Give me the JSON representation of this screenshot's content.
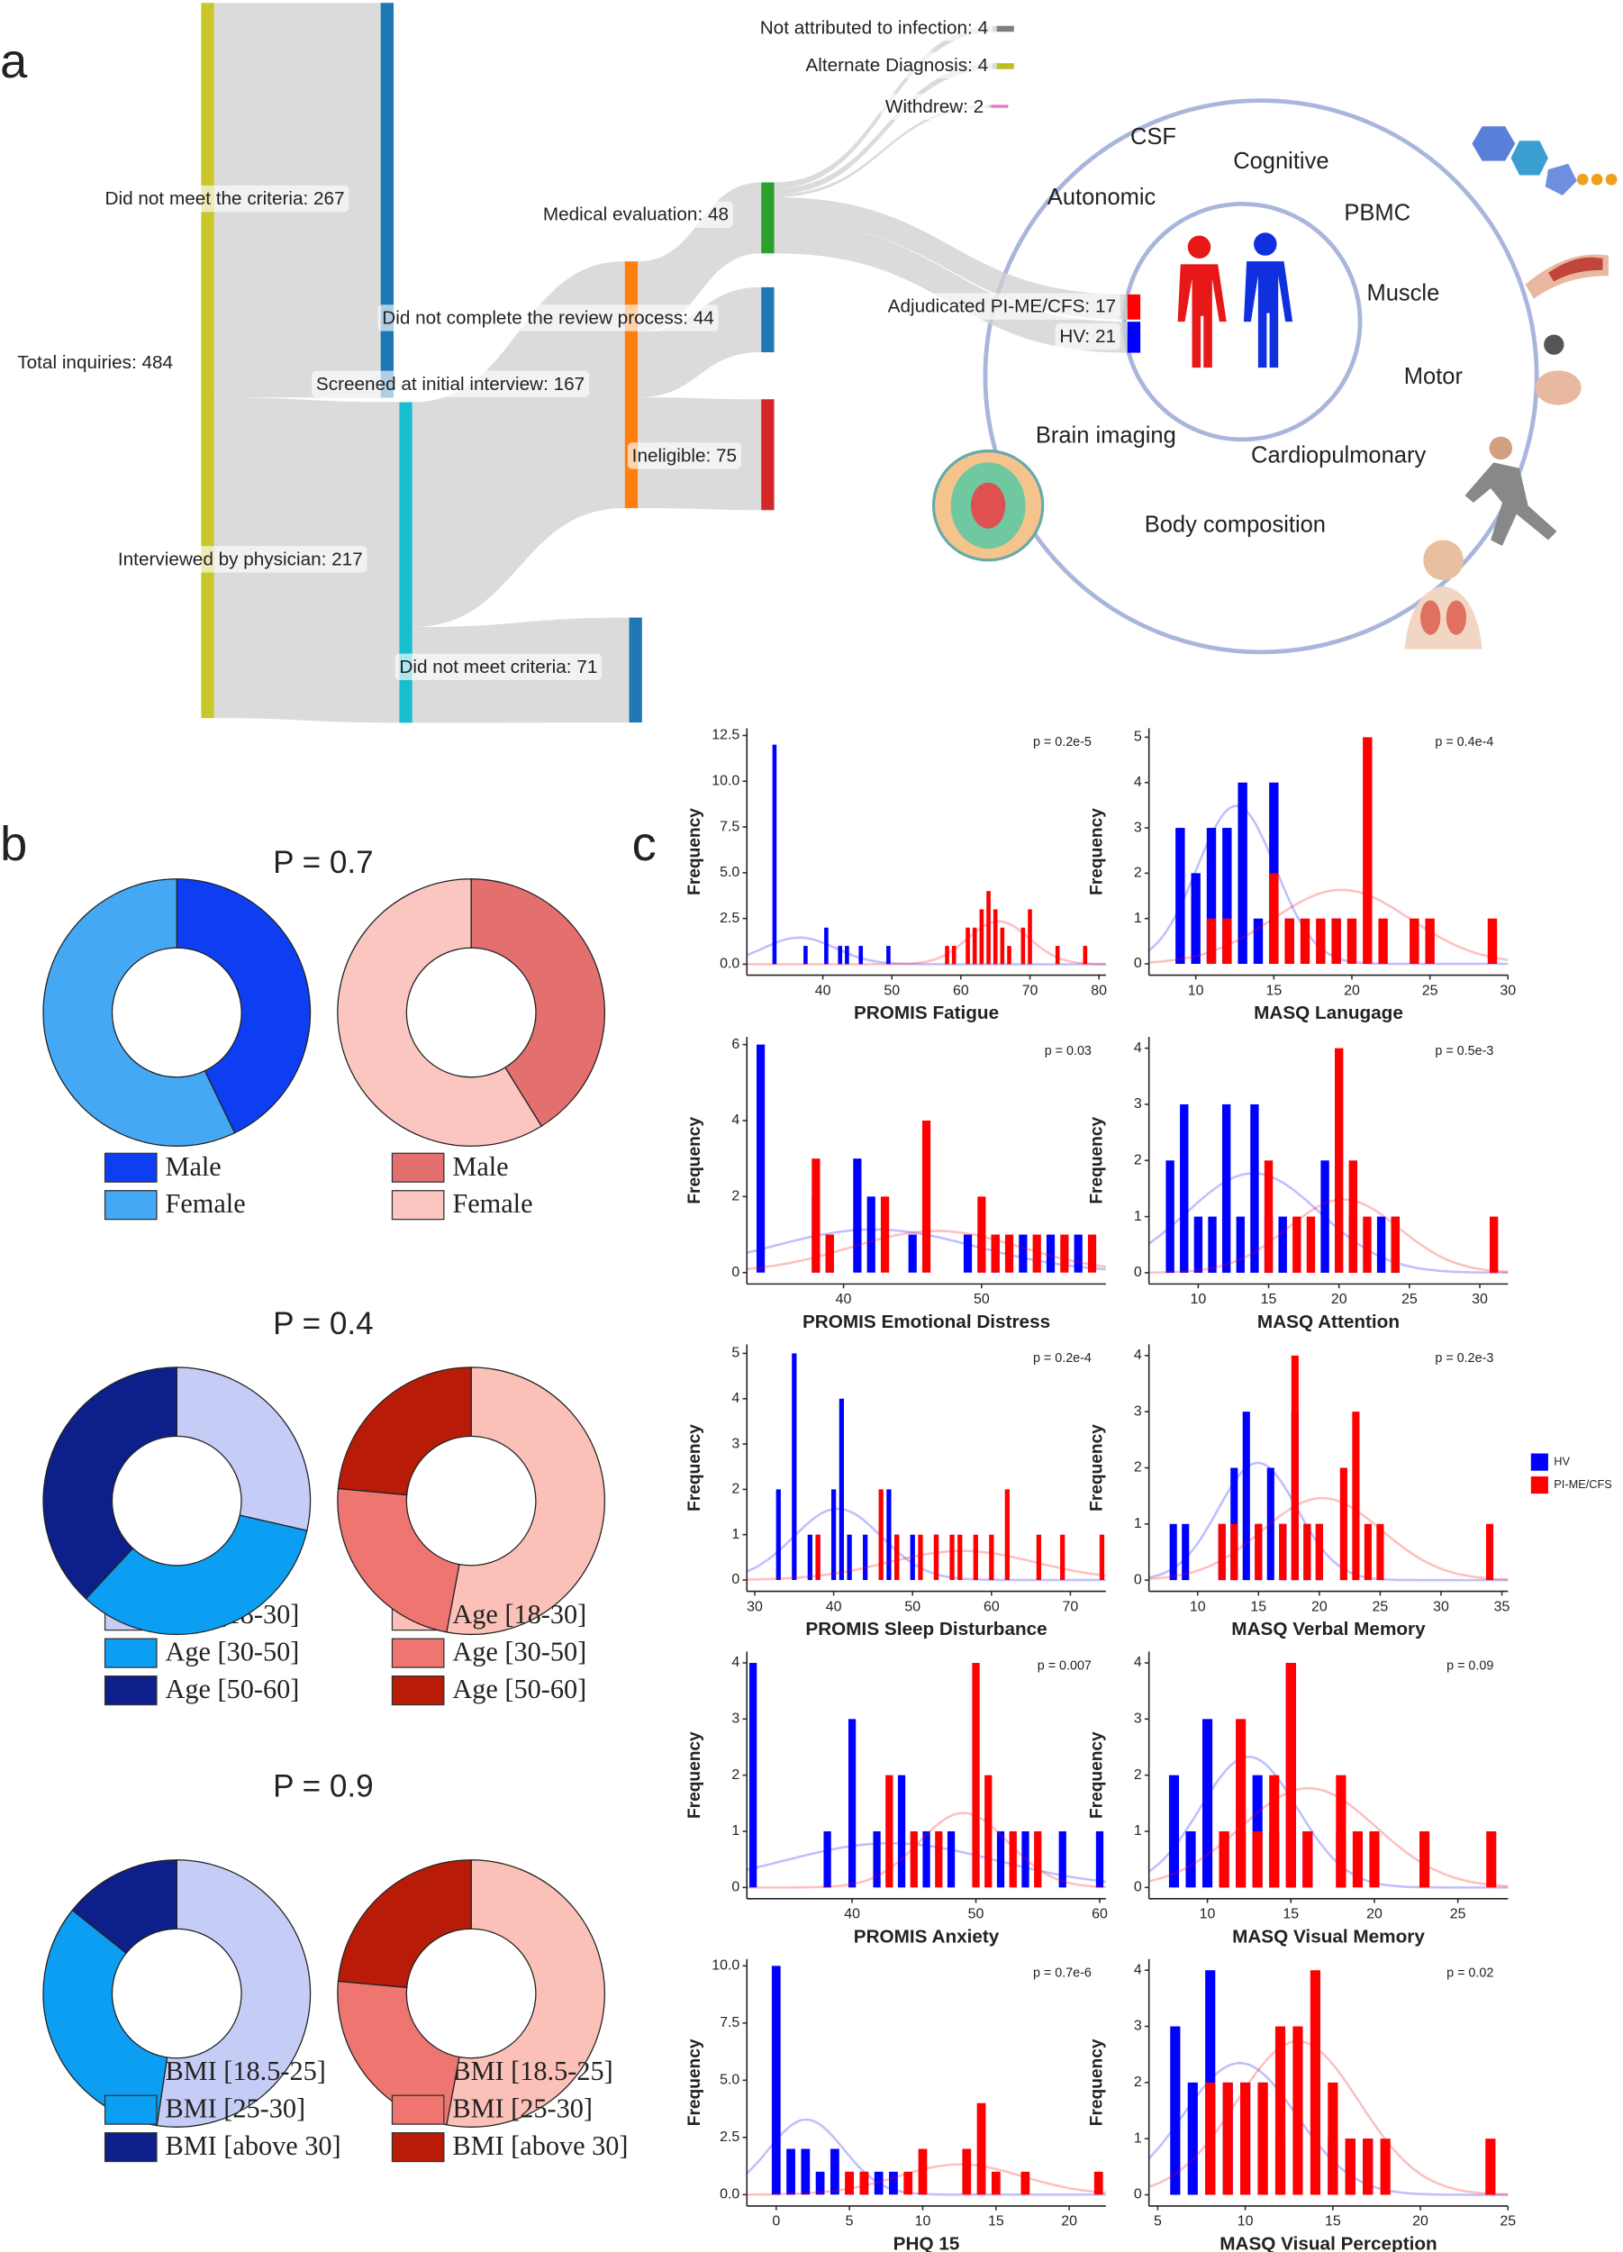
{
  "panel_labels": [
    "a",
    "b",
    "c"
  ],
  "sankey": {
    "nodes": [
      {
        "label": "Total inquiries: 484",
        "value": 484,
        "color": "#c9c72c"
      },
      {
        "label": "Did not meet the criteria: 267",
        "value": 267,
        "color": "#1f77b4"
      },
      {
        "label": "Interviewed by physician: 217",
        "value": 217,
        "color": "#17becf"
      },
      {
        "label": "Screened at initial interview: 167",
        "value": 167,
        "color": "#ff7f0e"
      },
      {
        "label": "Did not meet criteria: 71",
        "value": 71,
        "color": "#1f77b4"
      },
      {
        "label": "Medical evaluation: 48",
        "value": 48,
        "color": "#2ca02c"
      },
      {
        "label": "Did not complete the review process: 44",
        "value": 44,
        "color": "#1f77b4"
      },
      {
        "label": "Ineligible: 75",
        "value": 75,
        "color": "#d62728"
      },
      {
        "label": "Not attributed to infection: 4",
        "value": 4,
        "color": "#7f7f7f"
      },
      {
        "label": "Alternate Diagnosis: 4",
        "value": 4,
        "color": "#bcbd22"
      },
      {
        "label": "Withdrew: 2",
        "value": 2,
        "color": "#e377c2"
      },
      {
        "label": "Adjudicated PI-ME/CFS: 17",
        "value": 17,
        "color": "#ff0000"
      },
      {
        "label": "HV: 21",
        "value": 21,
        "color": "#0000ff"
      }
    ]
  },
  "study_diagram": {
    "items": [
      "CSF",
      "Cognitive",
      "Autonomic",
      "PBMC",
      "Muscle",
      "Motor",
      "Brain imaging",
      "Cardiopulmonary",
      "Body composition"
    ]
  },
  "histogram_legend": [
    {
      "name": "HV",
      "color": "#0000ff"
    },
    {
      "name": "PI-ME/CFS",
      "color": "#ff0000"
    }
  ],
  "chart_data": [
    {
      "type": "donut",
      "title": "P = 0.7",
      "series": [
        {
          "categories": [
            "Male",
            "Female"
          ],
          "colors": [
            "#0d3ef2",
            "#44a8f5"
          ],
          "values": [
            9,
            12
          ]
        },
        {
          "categories": [
            "Male",
            "Female"
          ],
          "colors": [
            "#e46f6f",
            "#fbc6c0"
          ],
          "values": [
            7,
            10
          ]
        }
      ]
    },
    {
      "type": "donut",
      "title": "P = 0.4",
      "series": [
        {
          "categories": [
            "Age [18-30]",
            "Age [30-50]",
            "Age [50-60]"
          ],
          "colors": [
            "#c5cdf6",
            "#0c9ef2",
            "#0c1f8a"
          ],
          "values": [
            6,
            7,
            8
          ]
        },
        {
          "categories": [
            "Age [18-30]",
            "Age [30-50]",
            "Age [50-60]"
          ],
          "colors": [
            "#fbc1b8",
            "#ee7570",
            "#b81c08"
          ],
          "values": [
            9,
            4,
            4
          ]
        }
      ]
    },
    {
      "type": "donut",
      "title": "P = 0.9",
      "series": [
        {
          "categories": [
            "BMI [18.5-25]",
            "BMI [25-30]",
            "BMI [above 30]"
          ],
          "colors": [
            "#c5cdf6",
            "#0c9ef2",
            "#0c1f8a"
          ],
          "values": [
            11,
            7,
            3
          ]
        },
        {
          "categories": [
            "BMI [18.5-25]",
            "BMI [25-30]",
            "BMI [above 30]"
          ],
          "colors": [
            "#fbc1b8",
            "#ee7570",
            "#b81c08"
          ],
          "values": [
            9,
            4,
            4
          ]
        }
      ]
    },
    {
      "type": "histogram",
      "xlabel": "PROMIS Fatigue",
      "ylabel": "Frequency",
      "annotation": "p = 0.2e-5",
      "xlim": [
        29,
        81
      ],
      "xticks": [
        40,
        50,
        60,
        70,
        80
      ],
      "ylim": [
        -0.6,
        12.9
      ],
      "yticks": [
        {
          "value": 0,
          "label": "0.0"
        },
        2.5,
        {
          "value": 5,
          "label": "5.0"
        },
        7.5,
        {
          "value": 10,
          "label": "10.0"
        },
        12.5
      ],
      "series": [
        {
          "x": [
            33,
            37.5,
            40.5,
            42.5,
            43.5,
            45.5,
            49.5
          ],
          "values": [
            12,
            1,
            2,
            1,
            1,
            1,
            1
          ]
        },
        {
          "x": [
            58,
            59,
            61,
            62,
            63,
            64,
            65,
            66,
            67,
            69,
            70,
            74,
            78
          ],
          "values": [
            1,
            1,
            2,
            2,
            3,
            4,
            3,
            2,
            1,
            2,
            3,
            1,
            1
          ]
        }
      ]
    },
    {
      "type": "histogram",
      "xlabel": "MASQ Lanugage",
      "ylabel": "Frequency",
      "annotation": "p = 0.4e-4",
      "xlim": [
        7,
        30
      ],
      "xticks": [
        10,
        15,
        20,
        25,
        30
      ],
      "ylim": [
        -0.25,
        5.2
      ],
      "yticks": [
        0,
        1,
        2,
        3,
        4,
        5
      ],
      "series": [
        {
          "x": [
            9,
            10,
            11,
            12,
            13,
            14,
            15,
            16,
            19
          ],
          "values": [
            3,
            2,
            3,
            3,
            4,
            1,
            4,
            1,
            1
          ]
        },
        {
          "x": [
            11,
            12,
            15,
            16,
            17,
            18,
            19,
            20,
            21,
            22,
            24,
            25,
            29
          ],
          "values": [
            1,
            1,
            2,
            1,
            1,
            1,
            1,
            1,
            5,
            1,
            1,
            1,
            1
          ]
        }
      ]
    },
    {
      "type": "histogram",
      "xlabel": "PROMIS Emotional Distress",
      "ylabel": "Frequency",
      "annotation": "p = 0.03",
      "xlim": [
        33,
        59
      ],
      "xticks": [
        40,
        50
      ],
      "ylim": [
        -0.3,
        6.2
      ],
      "yticks": [
        0,
        2,
        4,
        6
      ],
      "series": [
        {
          "x": [
            34,
            38,
            39,
            41,
            42,
            45,
            49,
            50,
            51,
            53,
            55,
            57
          ],
          "values": [
            6,
            2,
            1,
            3,
            2,
            1,
            1,
            1,
            1,
            1,
            1,
            1
          ]
        },
        {
          "x": [
            38,
            39,
            43,
            46,
            50,
            51,
            52,
            54,
            56,
            58
          ],
          "values": [
            3,
            1,
            2,
            4,
            2,
            1,
            1,
            1,
            1,
            1
          ]
        }
      ]
    },
    {
      "type": "histogram",
      "xlabel": "MASQ Attention",
      "ylabel": "Frequency",
      "annotation": "p = 0.5e-3",
      "xlim": [
        6.5,
        32
      ],
      "xticks": [
        10,
        15,
        20,
        25,
        30
      ],
      "ylim": [
        -0.2,
        4.2
      ],
      "yticks": [
        0,
        1,
        2,
        3,
        4
      ],
      "series": [
        {
          "x": [
            8,
            9,
            10,
            11,
            12,
            13,
            14,
            15,
            16,
            19,
            21,
            23,
            24
          ],
          "values": [
            2,
            3,
            1,
            1,
            3,
            1,
            3,
            1,
            1,
            2,
            1,
            1,
            1
          ]
        },
        {
          "x": [
            15,
            17,
            18,
            20,
            21,
            22,
            24,
            31
          ],
          "values": [
            2,
            1,
            1,
            4,
            2,
            1,
            1,
            1
          ]
        }
      ]
    },
    {
      "type": "histogram",
      "xlabel": "PROMIS Sleep Disturbance",
      "ylabel": "Frequency",
      "annotation": "p = 0.2e-4",
      "xlim": [
        29,
        74.5
      ],
      "xticks": [
        30,
        40,
        50,
        60,
        70
      ],
      "ylim": [
        -0.25,
        5.2
      ],
      "yticks": [
        0,
        1,
        2,
        3,
        4,
        5
      ],
      "series": [
        {
          "x": [
            33,
            35,
            37,
            38,
            40,
            41,
            42,
            44,
            47,
            48,
            50,
            53
          ],
          "values": [
            2,
            5,
            1,
            1,
            2,
            4,
            1,
            1,
            2,
            1,
            1,
            1
          ]
        },
        {
          "x": [
            38,
            46,
            48,
            51,
            53,
            55,
            56,
            58,
            60,
            62,
            66,
            69,
            74
          ],
          "values": [
            1,
            2,
            1,
            1,
            1,
            1,
            1,
            1,
            1,
            2,
            1,
            1,
            1
          ]
        }
      ]
    },
    {
      "type": "histogram",
      "xlabel": "MASQ Verbal Memory",
      "ylabel": "Frequency",
      "annotation": "p = 0.2e-3",
      "xlim": [
        6,
        35.5
      ],
      "xticks": [
        10,
        15,
        20,
        25,
        30,
        35
      ],
      "ylim": [
        -0.2,
        4.2
      ],
      "yticks": [
        0,
        1,
        2,
        3,
        4
      ],
      "series": [
        {
          "x": [
            8,
            9,
            12,
            13,
            14,
            15,
            16,
            17,
            18,
            19,
            20
          ],
          "values": [
            1,
            1,
            1,
            2,
            3,
            1,
            2,
            1,
            3,
            1,
            1
          ]
        },
        {
          "x": [
            12,
            13,
            15,
            17,
            18,
            19,
            20,
            22,
            23,
            24,
            25,
            34
          ],
          "values": [
            1,
            1,
            1,
            1,
            4,
            1,
            1,
            2,
            3,
            1,
            1,
            1
          ]
        }
      ]
    },
    {
      "type": "histogram",
      "xlabel": "PROMIS Anxiety",
      "ylabel": "Frequency",
      "annotation": "p = 0.007",
      "xlim": [
        31.5,
        60.5
      ],
      "xticks": [
        40,
        50,
        60
      ],
      "ylim": [
        -0.2,
        4.2
      ],
      "yticks": [
        0,
        1,
        2,
        3,
        4
      ],
      "series": [
        {
          "x": [
            32,
            38,
            40,
            42,
            44,
            46,
            48,
            52,
            54,
            57,
            60
          ],
          "values": [
            4,
            1,
            3,
            1,
            2,
            1,
            1,
            1,
            1,
            1,
            1
          ]
        },
        {
          "x": [
            43,
            45,
            47,
            50,
            51,
            53,
            55
          ],
          "values": [
            2,
            1,
            1,
            4,
            2,
            1,
            1
          ]
        }
      ]
    },
    {
      "type": "histogram",
      "xlabel": "MASQ Visual Memory",
      "ylabel": "Frequency",
      "annotation": "p = 0.09",
      "xlim": [
        6.5,
        28
      ],
      "xticks": [
        10,
        15,
        20,
        25
      ],
      "ylim": [
        -0.2,
        4.2
      ],
      "yticks": [
        0,
        1,
        2,
        3,
        4
      ],
      "series": [
        {
          "x": [
            8,
            9,
            10,
            11,
            12,
            13,
            14,
            15,
            16,
            18
          ],
          "values": [
            2,
            1,
            3,
            1,
            1,
            2,
            1,
            4,
            1,
            1
          ]
        },
        {
          "x": [
            11,
            12,
            13,
            14,
            15,
            16,
            18,
            19,
            20,
            23,
            27
          ],
          "values": [
            1,
            3,
            1,
            2,
            4,
            1,
            2,
            1,
            1,
            1,
            1
          ]
        }
      ]
    },
    {
      "type": "histogram",
      "xlabel": "PHQ 15",
      "ylabel": "Frequency",
      "annotation": "p = 0.7e-6",
      "xlim": [
        -2,
        22.5
      ],
      "xticks": [
        0,
        5,
        10,
        15,
        20
      ],
      "ylim": [
        -0.5,
        10.3
      ],
      "yticks": [
        {
          "value": 0,
          "label": "0.0"
        },
        2.5,
        {
          "value": 5,
          "label": "5.0"
        },
        7.5,
        {
          "value": 10,
          "label": "10.0"
        }
      ],
      "series": [
        {
          "x": [
            0,
            1,
            2,
            3,
            4,
            5,
            6,
            7,
            8
          ],
          "values": [
            10,
            2,
            2,
            1,
            2,
            1,
            1,
            1,
            1
          ]
        },
        {
          "x": [
            5,
            6,
            9,
            10,
            13,
            14,
            15,
            17,
            22
          ],
          "values": [
            1,
            1,
            1,
            2,
            2,
            4,
            1,
            1,
            1
          ]
        }
      ]
    },
    {
      "type": "histogram",
      "xlabel": "MASQ Visual Perception",
      "ylabel": "Frequency",
      "annotation": "p = 0.02",
      "xlim": [
        4.5,
        25
      ],
      "xticks": [
        5,
        10,
        15,
        20,
        25
      ],
      "ylim": [
        -0.2,
        4.2
      ],
      "yticks": [
        0,
        1,
        2,
        3,
        4
      ],
      "series": [
        {
          "x": [
            6,
            7,
            8,
            9,
            10,
            11,
            12,
            15,
            16,
            17
          ],
          "values": [
            3,
            2,
            4,
            2,
            2,
            2,
            1,
            1,
            1,
            1
          ]
        },
        {
          "x": [
            8,
            9,
            10,
            11,
            12,
            13,
            14,
            15,
            16,
            17,
            18,
            24
          ],
          "values": [
            2,
            2,
            2,
            2,
            3,
            3,
            4,
            2,
            1,
            1,
            1,
            1
          ]
        }
      ]
    }
  ]
}
